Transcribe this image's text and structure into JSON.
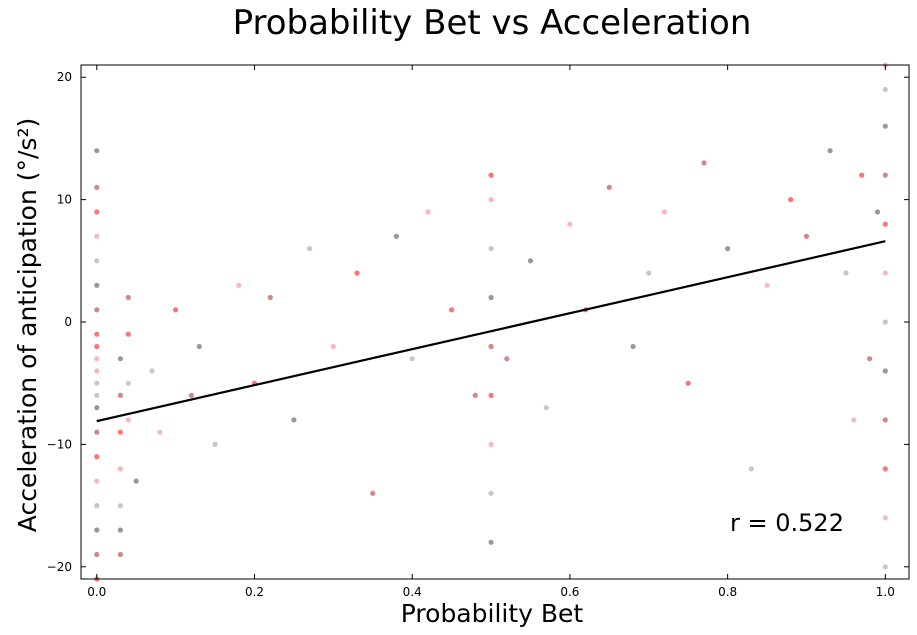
{
  "chart_data": {
    "type": "scatter",
    "title": "Probability Bet vs Acceleration",
    "xlabel": "Probability Bet",
    "ylabel": "Acceleration of anticipation (°/s²)",
    "xlim": [
      -0.02,
      1.03
    ],
    "ylim": [
      -21,
      21
    ],
    "xticks": [
      0.0,
      0.2,
      0.4,
      0.6,
      0.8,
      1.0
    ],
    "xtick_labels": [
      "0.0",
      "0.2",
      "0.4",
      "0.6",
      "0.8",
      "1.0"
    ],
    "yticks": [
      -20,
      -10,
      0,
      10,
      20
    ],
    "ytick_labels": [
      "−20",
      "−10",
      "0",
      "10",
      "20"
    ],
    "grid": false,
    "annotation": "r = 0.522",
    "point_colors": [
      "#ff0000",
      "#b22222",
      "#444444",
      "#999999",
      "#f08080"
    ],
    "regression": {
      "x": [
        0.0,
        1.0
      ],
      "y": [
        -8.1,
        6.6
      ],
      "color": "#000000"
    },
    "series": [
      {
        "x": [
          0.0,
          0.0,
          0.0,
          0.0,
          0.0,
          0.0,
          0.0,
          0.0,
          0.0,
          0.0,
          0.0,
          0.0,
          0.0,
          0.0,
          0.0,
          0.0,
          0.0,
          0.0,
          0.0,
          0.0,
          0.0,
          0.03,
          0.03,
          0.03,
          0.03,
          0.03,
          0.03,
          0.03,
          0.04,
          0.04,
          0.04,
          0.04,
          0.05,
          0.07,
          0.08,
          0.1,
          0.12,
          0.13,
          0.15,
          0.18,
          0.2,
          0.22,
          0.25,
          0.27,
          0.3,
          0.33,
          0.35,
          0.38,
          0.4,
          0.42,
          0.45,
          0.48,
          0.5,
          0.5,
          0.5,
          0.5,
          0.5,
          0.5,
          0.5,
          0.5,
          0.5,
          0.52,
          0.55,
          0.57,
          0.6,
          0.62,
          0.65,
          0.68,
          0.7,
          0.72,
          0.75,
          0.77,
          0.8,
          0.83,
          0.85,
          0.88,
          0.9,
          0.93,
          0.95,
          0.96,
          0.97,
          0.98,
          0.99,
          1.0,
          1.0,
          1.0,
          1.0,
          1.0,
          1.0,
          1.0,
          1.0,
          1.0,
          1.0,
          1.0,
          1.0
        ],
        "y": [
          -21,
          -19,
          -17,
          -15,
          -13,
          -11,
          -9,
          -7,
          -5,
          -3,
          -1,
          1,
          3,
          5,
          7,
          9,
          11,
          14,
          -6,
          -4,
          -2,
          -19,
          -17,
          -15,
          -12,
          -9,
          -6,
          -3,
          -5,
          -8,
          -1,
          2,
          -13,
          -4,
          -9,
          1,
          -6,
          -2,
          -10,
          3,
          -5,
          2,
          -8,
          6,
          -2,
          4,
          -14,
          7,
          -3,
          9,
          1,
          -6,
          -18,
          -14,
          -10,
          -6,
          -2,
          2,
          6,
          10,
          12,
          -3,
          5,
          -7,
          8,
          1,
          11,
          -2,
          4,
          9,
          -5,
          13,
          6,
          -12,
          3,
          10,
          7,
          14,
          4,
          -8,
          12,
          -3,
          9,
          -20,
          -16,
          -12,
          -8,
          -4,
          0,
          4,
          8,
          12,
          16,
          19,
          21
        ]
      }
    ]
  }
}
